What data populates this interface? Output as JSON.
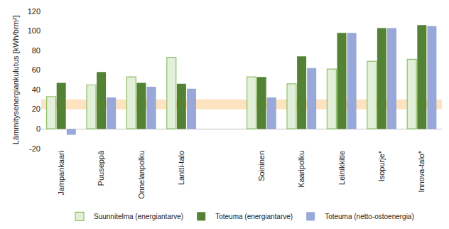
{
  "chart_data": {
    "type": "bar",
    "y_label": "Lämmitysenergiankulutus [kWh/brm²]",
    "categories": [
      "Jampankaari",
      "Puuseppä",
      "Onnelanpolku",
      "Lantti-talo",
      null,
      "Soininen",
      "Kaaripolku",
      "Leinikkitie",
      "Isopurje*",
      "Innova-talo*"
    ],
    "series": [
      {
        "name": "Suunnitelma (energiantarve)",
        "color": "#e2efd9",
        "values": [
          33,
          45,
          53,
          73,
          null,
          53,
          46,
          61,
          69,
          71
        ]
      },
      {
        "name": "Toteuma (energiantarve)",
        "color": "#548235",
        "values": [
          47,
          58,
          47,
          46,
          null,
          53,
          74,
          98,
          103,
          106
        ]
      },
      {
        "name": "Toteuma (netto-ostoenergia)",
        "color": "#98a9d9",
        "values": [
          -6,
          32,
          43,
          41,
          null,
          32,
          62,
          98,
          103,
          105
        ]
      }
    ],
    "target_band": [
      20,
      30
    ],
    "ylim": [
      -20,
      120
    ],
    "yticks": [
      -20,
      0,
      20,
      40,
      60,
      80,
      100,
      120
    ],
    "grid": false,
    "legend": "bottom"
  }
}
